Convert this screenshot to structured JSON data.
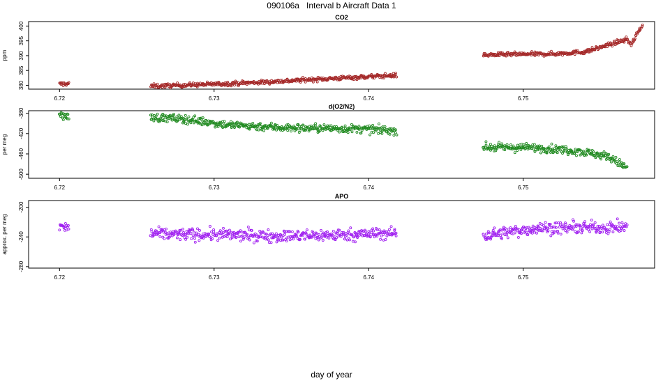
{
  "figure": {
    "title": "090106a   Interval b Aircraft Data 1",
    "xlabel": "day of year"
  },
  "chart_data": [
    {
      "type": "scatter",
      "title": "CO2",
      "ylabel": "ppm",
      "color": "#a52a2a",
      "xlim": [
        6.718,
        6.7585
      ],
      "ylim": [
        378.7,
        401.5
      ],
      "x_ticks": [
        6.72,
        6.73,
        6.74,
        6.75
      ],
      "x_tick_labels": [
        "6.72",
        "6.73",
        "6.74",
        "6.75"
      ],
      "y_ticks": [
        380,
        385,
        390,
        395,
        400
      ],
      "y_tick_labels": [
        "380",
        "385",
        "390",
        "395",
        "400"
      ],
      "noise": 0.35,
      "series": [
        {
          "points": [
            [
              6.72,
              380.4
            ],
            [
              6.7206,
              380.6
            ]
          ]
        },
        {
          "points": [
            [
              6.7259,
              379.7
            ],
            [
              6.7295,
              380.3
            ],
            [
              6.733,
              381.0
            ],
            [
              6.7365,
              382.0
            ],
            [
              6.74,
              382.9
            ],
            [
              6.7418,
              383.4
            ]
          ]
        },
        {
          "points": [
            [
              6.7474,
              390.2
            ],
            [
              6.749,
              390.4
            ],
            [
              6.752,
              390.6
            ],
            [
              6.754,
              391.3
            ],
            [
              6.7553,
              393.3
            ],
            [
              6.7567,
              395.5
            ],
            [
              6.757,
              393.8
            ],
            [
              6.7577,
              400.5
            ]
          ]
        }
      ]
    },
    {
      "type": "scatter",
      "title": "d(O2/N2)",
      "ylabel": "per meg",
      "color": "#228b22",
      "xlim": [
        6.718,
        6.7585
      ],
      "ylim": [
        -508,
        -375
      ],
      "x_ticks": [
        6.72,
        6.73,
        6.74,
        6.75
      ],
      "x_tick_labels": [
        "6.72",
        "6.73",
        "6.74",
        "6.75"
      ],
      "y_ticks": [
        -380,
        -420,
        -460,
        -500
      ],
      "y_tick_labels": [
        "-380",
        "-420",
        "-460",
        "-500"
      ],
      "noise": 4,
      "series": [
        {
          "points": [
            [
              6.72,
              -383
            ],
            [
              6.7206,
              -388
            ]
          ]
        },
        {
          "points": [
            [
              6.7259,
              -388
            ],
            [
              6.728,
              -391
            ],
            [
              6.731,
              -403
            ],
            [
              6.735,
              -409
            ],
            [
              6.7385,
              -410
            ],
            [
              6.7418,
              -414
            ]
          ]
        },
        {
          "points": [
            [
              6.7474,
              -447
            ],
            [
              6.751,
              -448
            ],
            [
              6.7535,
              -454
            ],
            [
              6.7555,
              -465
            ],
            [
              6.7567,
              -488
            ]
          ]
        }
      ]
    },
    {
      "type": "scatter",
      "title": "APO",
      "ylabel": "approx. per meg",
      "color": "#a020f0",
      "xlim": [
        6.718,
        6.7585
      ],
      "ylim": [
        -282,
        -191
      ],
      "x_ticks": [
        6.72,
        6.73,
        6.74,
        6.75
      ],
      "x_tick_labels": [
        "6.72",
        "6.73",
        "6.74",
        "6.75"
      ],
      "y_ticks": [
        -200,
        -240,
        -280
      ],
      "y_tick_labels": [
        "-200",
        "-240",
        "-280"
      ],
      "noise": 4,
      "series": [
        {
          "points": [
            [
              6.72,
              -226
            ],
            [
              6.7206,
              -228
            ]
          ]
        },
        {
          "points": [
            [
              6.7259,
              -236
            ],
            [
              6.73,
              -237
            ],
            [
              6.735,
              -239
            ],
            [
              6.7418,
              -235
            ]
          ]
        },
        {
          "points": [
            [
              6.7474,
              -238
            ],
            [
              6.751,
              -228
            ],
            [
              6.7567,
              -227
            ]
          ]
        }
      ]
    }
  ]
}
